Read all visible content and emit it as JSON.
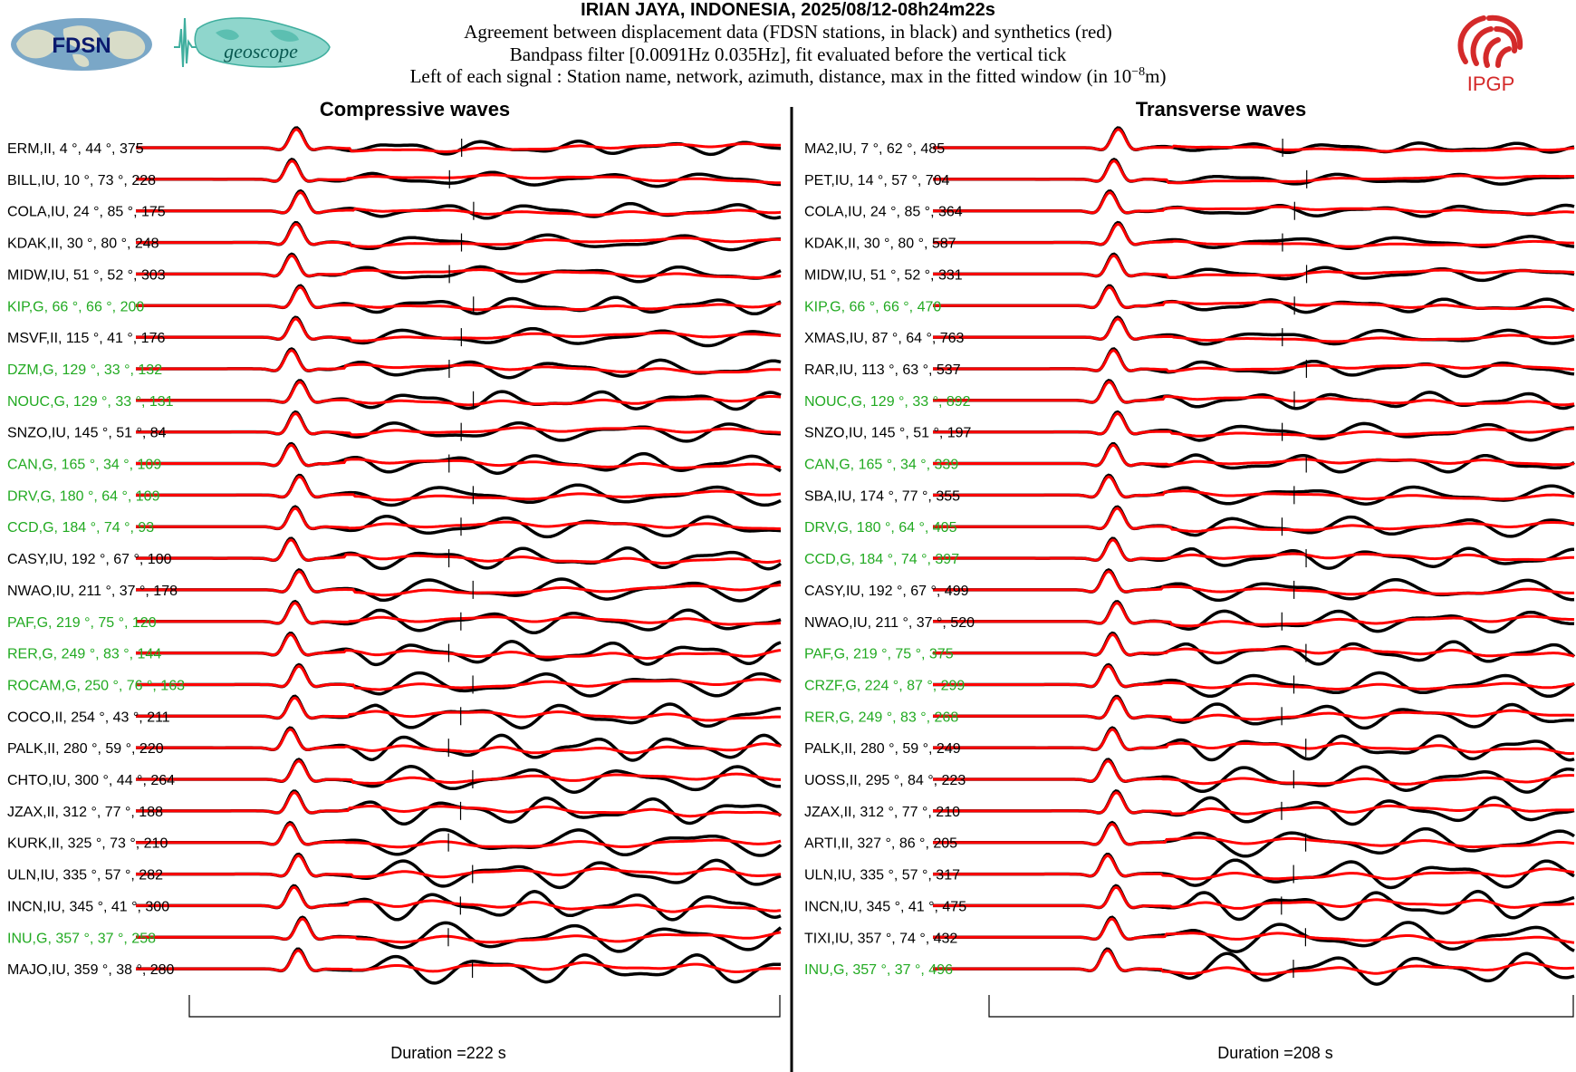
{
  "header": {
    "title": "IRIAN JAYA, INDONESIA, 2025/08/12-08h24m22s",
    "line1": "Agreement between displacement data (FDSN stations, in black) and synthetics (red)",
    "line2": "Bandpass filter [0.0091Hz 0.035Hz], fit evaluated before the vertical tick",
    "line3_prefix": "Left of each signal : Station name, network, azimuth, distance, max in the fitted window (in 10",
    "line3_exp": "−8",
    "line3_suffix": "m)"
  },
  "logos": {
    "fdsn": "FDSN",
    "geoscope": "geoscope",
    "ipgp": "IPGP"
  },
  "colors": {
    "data": "#000000",
    "synthetic": "#ff0000",
    "geoscope_label": "#22aa22",
    "other_label": "#000000"
  },
  "chart_data": [
    {
      "type": "line",
      "title": "Compressive waves",
      "duration_label": "Duration =222 s",
      "stations": [
        {
          "label": "ERM,II, 4 °, 44 °, 375",
          "net": "II"
        },
        {
          "label": "BILL,IU, 10 °, 73 °, 228",
          "net": "IU"
        },
        {
          "label": "COLA,IU, 24 °, 85 °, 175",
          "net": "IU"
        },
        {
          "label": "KDAK,II, 30 °, 80 °, 248",
          "net": "II"
        },
        {
          "label": "MIDW,IU, 51 °, 52 °, 303",
          "net": "IU"
        },
        {
          "label": "KIP,G, 66 °, 66 °, 200",
          "net": "G"
        },
        {
          "label": "MSVF,II, 115 °, 41 °, 176",
          "net": "II"
        },
        {
          "label": "DZM,G, 129 °, 33 °, 132",
          "net": "G"
        },
        {
          "label": "NOUC,G, 129 °, 33 °, 131",
          "net": "G"
        },
        {
          "label": "SNZO,IU, 145 °, 51 °, 84",
          "net": "IU"
        },
        {
          "label": "CAN,G, 165 °, 34 °, 109",
          "net": "G"
        },
        {
          "label": "DRV,G, 180 °, 64 °, 109",
          "net": "G"
        },
        {
          "label": "CCD,G, 184 °, 74 °, 93",
          "net": "G"
        },
        {
          "label": "CASY,IU, 192 °, 67 °, 100",
          "net": "IU"
        },
        {
          "label": "NWAO,IU, 211 °, 37 °, 178",
          "net": "IU"
        },
        {
          "label": "PAF,G, 219 °, 75 °, 120",
          "net": "G"
        },
        {
          "label": "RER,G, 249 °, 83 °, 144",
          "net": "G"
        },
        {
          "label": "ROCAM,G, 250 °, 76 °, 163",
          "net": "G"
        },
        {
          "label": "COCO,II, 254 °, 43 °, 211",
          "net": "II"
        },
        {
          "label": "PALK,II, 280 °, 59 °, 220",
          "net": "II"
        },
        {
          "label": "CHTO,IU, 300 °, 44 °, 264",
          "net": "IU"
        },
        {
          "label": "JZAX,II, 312 °, 77 °, 188",
          "net": "II"
        },
        {
          "label": "KURK,II, 325 °, 73 °, 210",
          "net": "II"
        },
        {
          "label": "ULN,IU, 335 °, 57 °, 282",
          "net": "IU"
        },
        {
          "label": "INCN,IU, 345 °, 41 °, 300",
          "net": "IU"
        },
        {
          "label": "INU,G, 357 °, 37 °, 258",
          "net": "G"
        },
        {
          "label": "MAJO,IU, 359 °, 38 °, 280",
          "net": "IU"
        }
      ]
    },
    {
      "type": "line",
      "title": "Transverse waves",
      "duration_label": "Duration =208 s",
      "stations": [
        {
          "label": "MA2,IU, 7 °, 62 °, 485",
          "net": "IU"
        },
        {
          "label": "PET,IU, 14 °, 57 °, 704",
          "net": "IU"
        },
        {
          "label": "COLA,IU, 24 °, 85 °, 364",
          "net": "IU"
        },
        {
          "label": "KDAK,II, 30 °, 80 °, 587",
          "net": "II"
        },
        {
          "label": "MIDW,IU, 51 °, 52 °, 331",
          "net": "IU"
        },
        {
          "label": "KIP,G, 66 °, 66 °, 470",
          "net": "G"
        },
        {
          "label": "XMAS,IU, 87 °, 64 °, 763",
          "net": "IU"
        },
        {
          "label": "RAR,IU, 113 °, 63 °, 537",
          "net": "IU"
        },
        {
          "label": "NOUC,G, 129 °, 33 °, 892",
          "net": "G"
        },
        {
          "label": "SNZO,IU, 145 °, 51 °, 197",
          "net": "IU"
        },
        {
          "label": "CAN,G, 165 °, 34 °, 339",
          "net": "G"
        },
        {
          "label": "SBA,IU, 174 °, 77 °, 355",
          "net": "IU"
        },
        {
          "label": "DRV,G, 180 °, 64 °, 405",
          "net": "G"
        },
        {
          "label": "CCD,G, 184 °, 74 °, 397",
          "net": "G"
        },
        {
          "label": "CASY,IU, 192 °, 67 °, 499",
          "net": "IU"
        },
        {
          "label": "NWAO,IU, 211 °, 37 °, 520",
          "net": "IU"
        },
        {
          "label": "PAF,G, 219 °, 75 °, 375",
          "net": "G"
        },
        {
          "label": "CRZF,G, 224 °, 87 °, 299",
          "net": "G"
        },
        {
          "label": "RER,G, 249 °, 83 °, 268",
          "net": "G"
        },
        {
          "label": "PALK,II, 280 °, 59 °, 249",
          "net": "II"
        },
        {
          "label": "UOSS,II, 295 °, 84 °, 223",
          "net": "II"
        },
        {
          "label": "JZAX,II, 312 °, 77 °, 210",
          "net": "II"
        },
        {
          "label": "ARTI,II, 327 °, 86 °, 205",
          "net": "II"
        },
        {
          "label": "ULN,IU, 335 °, 57 °, 317",
          "net": "IU"
        },
        {
          "label": "INCN,IU, 345 °, 41 °, 475",
          "net": "IU"
        },
        {
          "label": "TIXI,IU, 357 °, 74 °, 432",
          "net": "IU"
        },
        {
          "label": "INU,G, 357 °, 37 °, 496",
          "net": "G"
        }
      ]
    }
  ]
}
